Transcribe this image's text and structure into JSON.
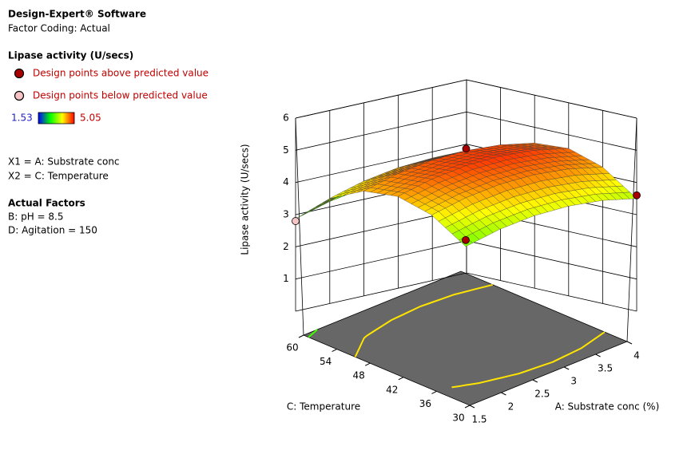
{
  "header": {
    "software": "Design-Expert® Software",
    "coding": "Factor Coding: Actual"
  },
  "legend": {
    "title": "Lipase activity (U/secs)",
    "above": "Design points above predicted value",
    "below": "Design points below predicted value"
  },
  "factors": {
    "x1": "X1 = A: Substrate conc",
    "x2": "X2 = C: Temperature",
    "title": "Actual Factors",
    "b": "B: pH = 8.5",
    "d": "D: Agitation = 150"
  },
  "chart_data": {
    "type": "surface",
    "xlabel": "A: Substrate conc (%)",
    "ylabel": "C: Temperature",
    "zlabel": "Lipase activity (U/secs)",
    "x": [
      1.5,
      2,
      2.5,
      3,
      3.5,
      4
    ],
    "y": [
      30,
      36,
      42,
      48,
      54,
      60
    ],
    "z": [
      [
        3.2,
        3.5,
        3.68,
        3.74,
        3.68,
        3.5
      ],
      [
        3.94,
        4.24,
        4.42,
        4.48,
        4.42,
        4.24
      ],
      [
        4.28,
        4.58,
        4.76,
        4.82,
        4.76,
        4.58
      ],
      [
        4.21,
        4.51,
        4.69,
        4.75,
        4.69,
        4.51
      ],
      [
        3.74,
        4.04,
        4.22,
        4.28,
        4.22,
        4.04
      ],
      [
        2.87,
        3.17,
        3.35,
        3.41,
        3.35,
        3.17
      ]
    ],
    "xlim": [
      1.5,
      4
    ],
    "xticks": [
      1.5,
      2,
      2.5,
      3,
      3.5,
      4
    ],
    "ylim": [
      30,
      60
    ],
    "yticks": [
      30,
      36,
      42,
      48,
      54,
      60
    ],
    "zlim": [
      0,
      6
    ],
    "zticks": [
      1,
      2,
      3,
      4,
      5,
      6
    ],
    "colorbar": {
      "min": 1.53,
      "max": 5.05,
      "colors": [
        "#0000ff",
        "#00ff00",
        "#ffff00",
        "#ff0000"
      ]
    },
    "points": {
      "x": [
        1.5,
        4,
        2.75,
        1.5
      ],
      "y": [
        30,
        30,
        45,
        60
      ],
      "z": [
        3.4,
        3.6,
        5.05,
        2.8
      ],
      "position": [
        "above",
        "above",
        "above",
        "below"
      ]
    },
    "point_colors": {
      "above": "#a80000",
      "below": "#f6c4c4"
    },
    "floor_color": "#676767"
  }
}
